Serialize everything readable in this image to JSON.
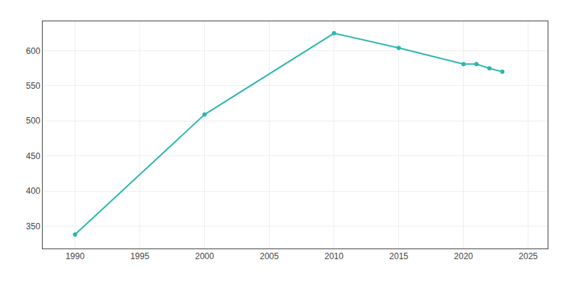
{
  "chart_data": {
    "type": "line",
    "x": [
      1990,
      2000,
      2010,
      2015,
      2020,
      2021,
      2022,
      2023
    ],
    "values": [
      338,
      509,
      625,
      604,
      581,
      581,
      575,
      570
    ],
    "color": "#2ab5b0",
    "marker": "circle",
    "xlim": [
      1987.5,
      2026.5
    ],
    "ylim": [
      318,
      642
    ],
    "xticks": [
      1990,
      1995,
      2000,
      2005,
      2010,
      2015,
      2020,
      2025
    ],
    "yticks": [
      350,
      400,
      450,
      500,
      550,
      600
    ],
    "grid": true
  }
}
